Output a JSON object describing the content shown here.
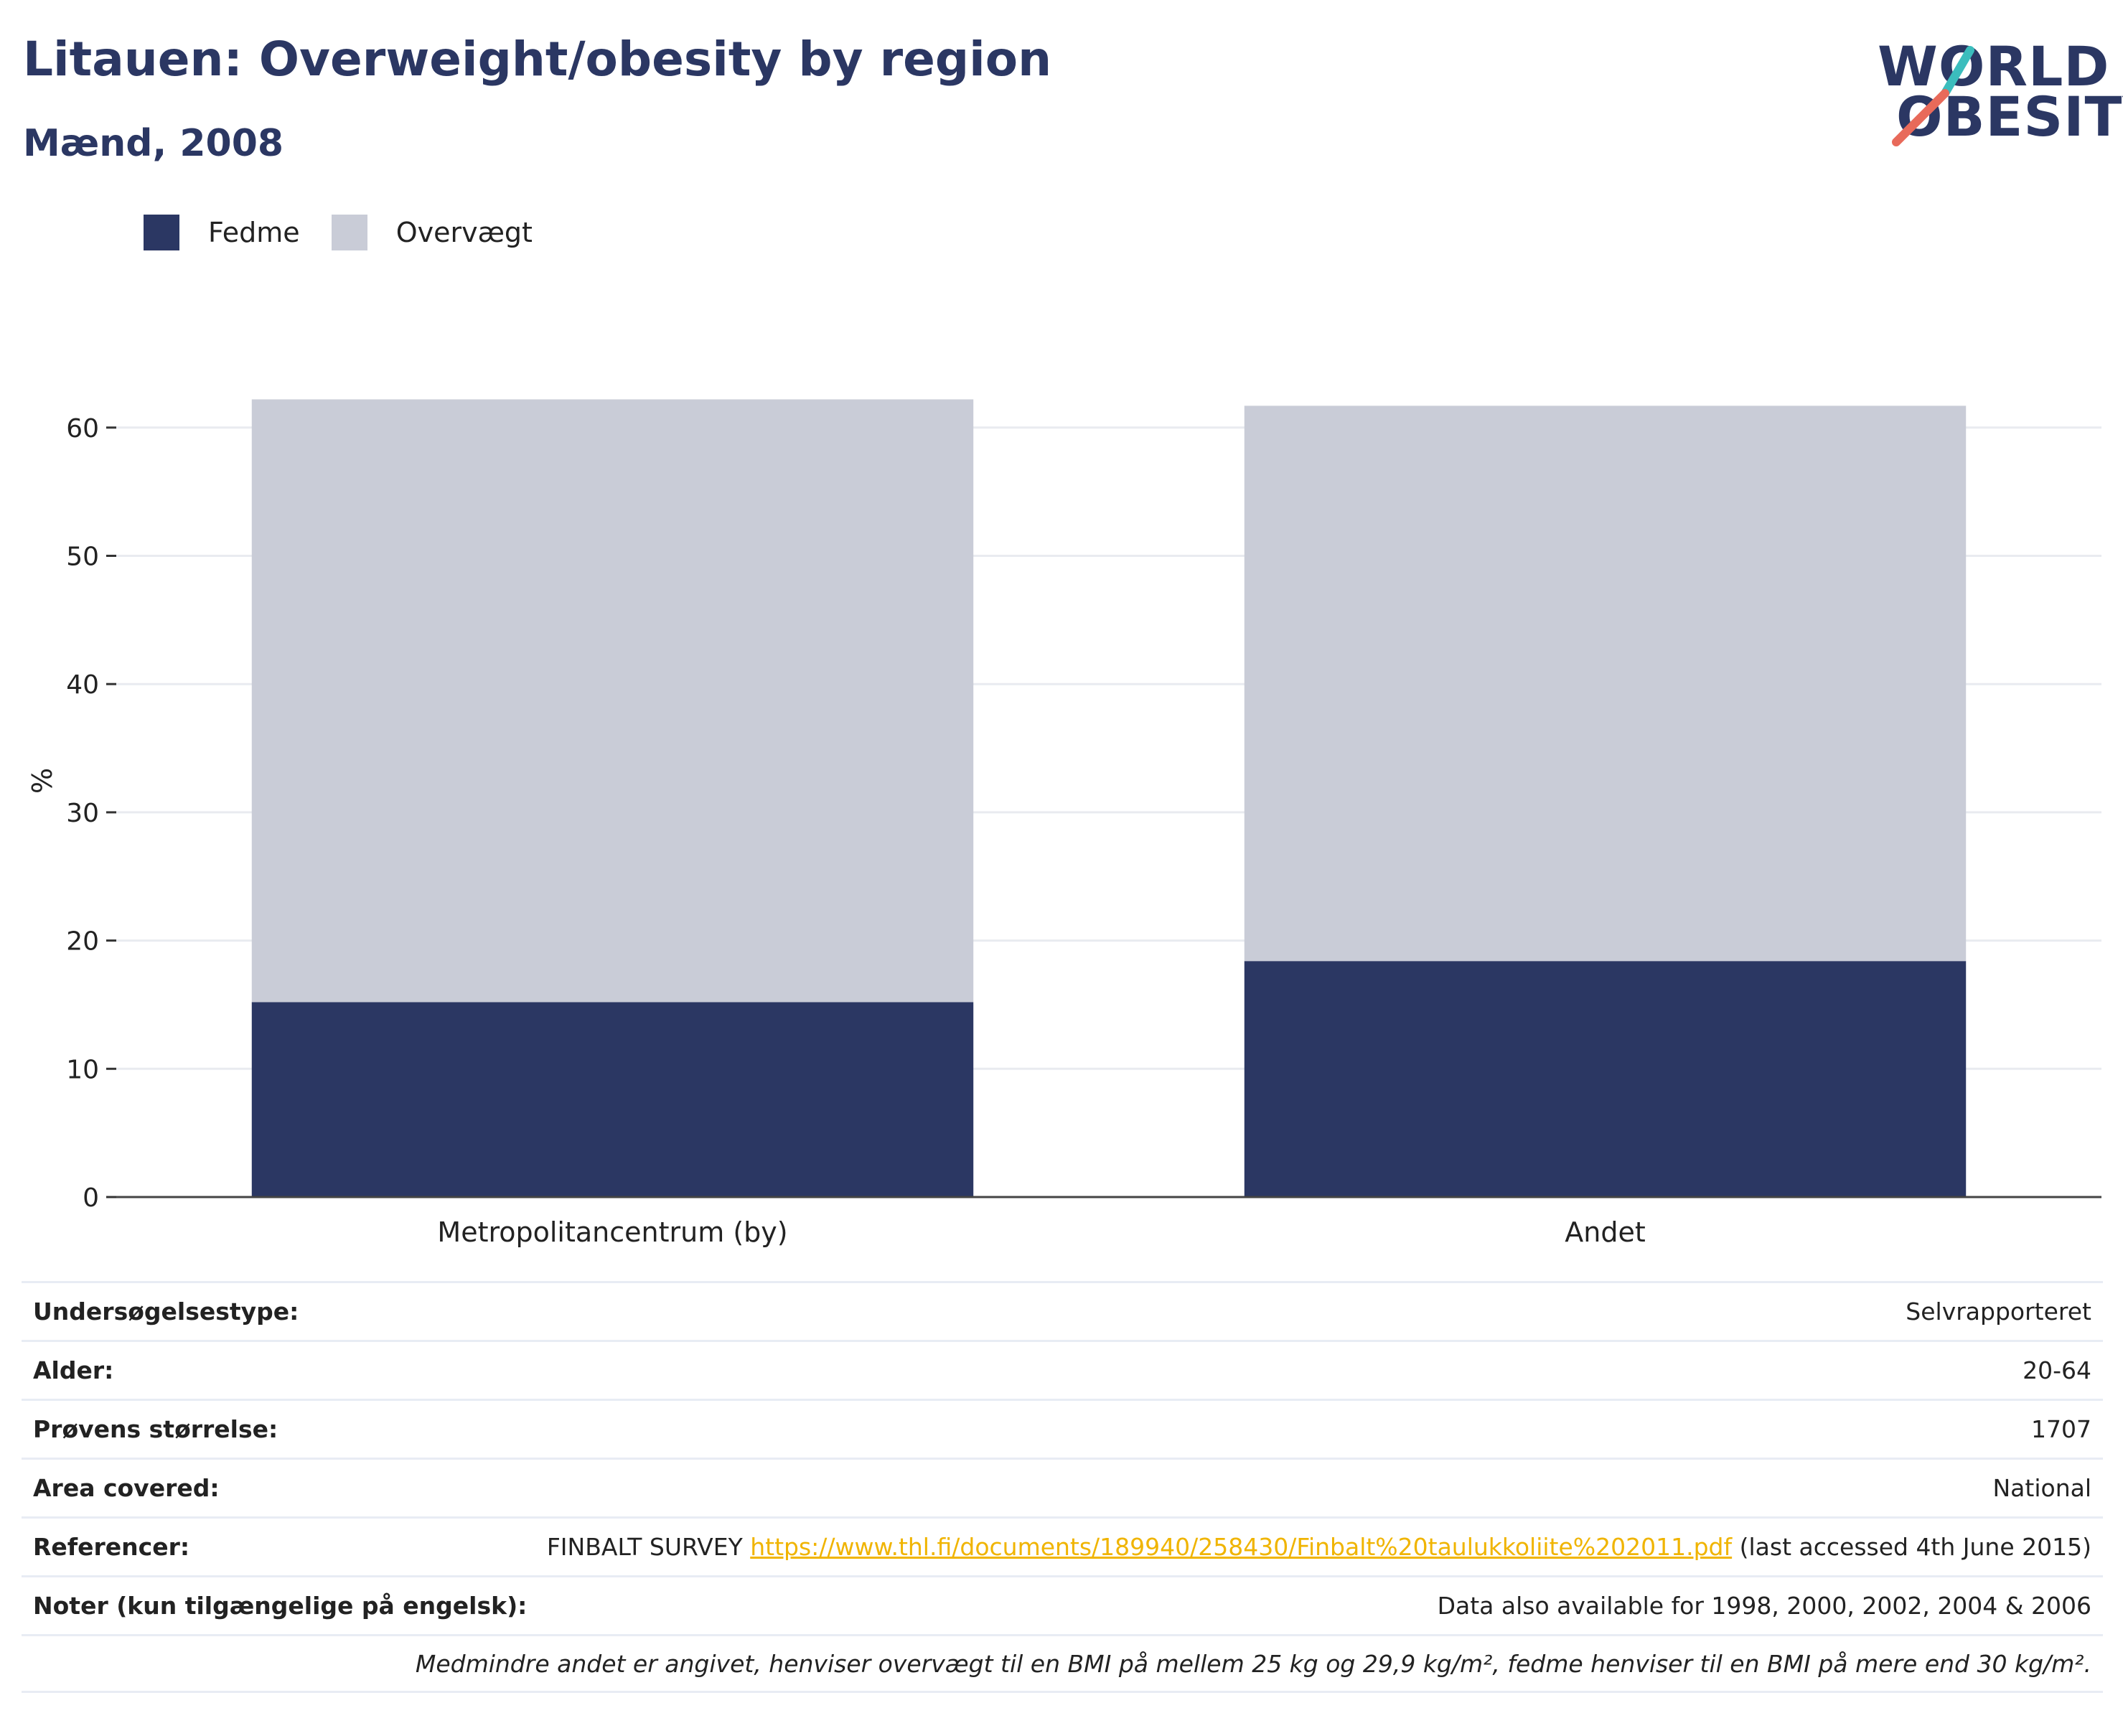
{
  "header": {
    "title": "Litauen: Overweight/obesity by region",
    "subtitle": "Mænd, 2008"
  },
  "logo": {
    "line1": "WORLD",
    "line2": "OBESITY",
    "colors": {
      "text": "#2b3763",
      "slash_top": "#3bbdbd",
      "slash_bottom": "#e86a5a"
    }
  },
  "legend": [
    {
      "label": "Fedme",
      "color": "#2b3763"
    },
    {
      "label": "Overvægt",
      "color": "#c9ccd7"
    }
  ],
  "chart_data": {
    "type": "bar",
    "stacked": true,
    "categories": [
      "Metropolitancentrum (by)",
      "Andet"
    ],
    "series": [
      {
        "name": "Fedme",
        "color": "#2b3763",
        "values": [
          15.2,
          18.4
        ]
      },
      {
        "name": "Overvægt",
        "color": "#c9ccd7",
        "values": [
          47.0,
          43.3
        ]
      }
    ],
    "title": "Litauen: Overweight/obesity by region",
    "subtitle": "Mænd, 2008",
    "xlabel": "",
    "ylabel": "%",
    "ylim": [
      0,
      65
    ],
    "yticks": [
      0,
      10,
      20,
      30,
      40,
      50,
      60
    ],
    "grid": true,
    "legend_position": "top-left"
  },
  "info": {
    "rows": [
      {
        "label": "Undersøgelsestype:",
        "value": "Selvrapporteret"
      },
      {
        "label": "Alder:",
        "value": "20-64"
      },
      {
        "label": "Prøvens størrelse:",
        "value": "1707"
      },
      {
        "label": "Area covered:",
        "value": "National"
      }
    ],
    "reference": {
      "label": "Referencer:",
      "prefix": "FINBALT SURVEY ",
      "link": "https://www.thl.fi/documents/189940/258430/Finbalt%20taulukkoliite%202011.pdf",
      "suffix": " (last accessed 4th June 2015)"
    },
    "notes": {
      "label": "Noter (kun tilgængelige på engelsk):",
      "value": "Data also available for 1998, 2000, 2002, 2004 & 2006"
    },
    "footnote": "Medmindre andet er angivet, henviser overvægt til en BMI på mellem 25 kg og 29,9 kg/m², fedme henviser til en BMI på mere end 30 kg/m²."
  }
}
